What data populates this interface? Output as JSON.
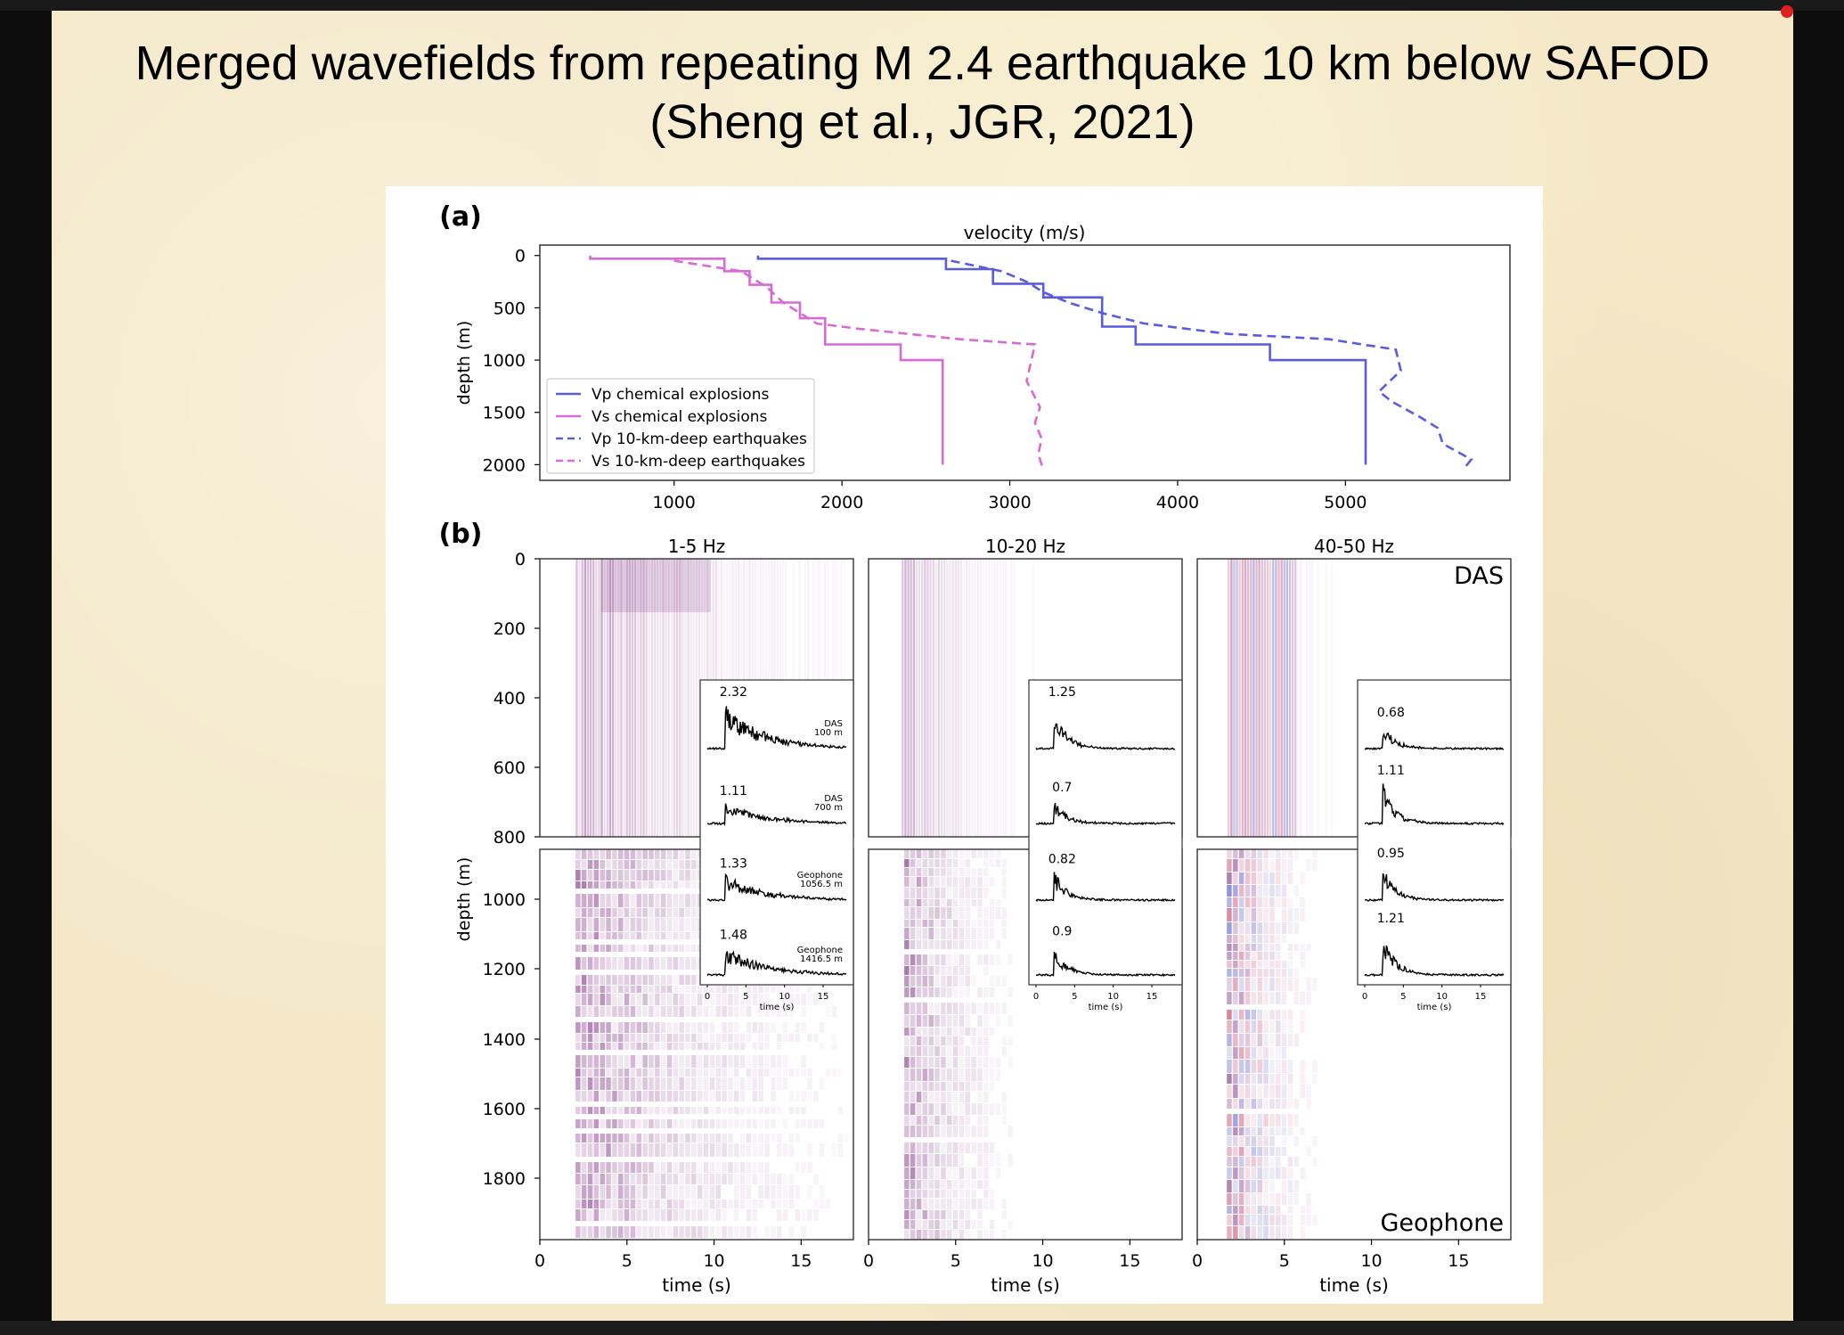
{
  "slide": {
    "title_line1": "Merged wavefields from repeating M 2.4 earthquake 10 km below SAFOD",
    "title_line2": "(Sheng et al., JGR, 2021)"
  },
  "colors": {
    "vp": "#5b5bdf",
    "vs": "#d76ad4",
    "wave_purple": "#7a2a80",
    "wave_blue": "#4040c0",
    "wave_red": "#c03060"
  },
  "chart_data": [
    {
      "panel": "(a)",
      "type": "line",
      "title": "velocity (m/s)",
      "xlabel": "",
      "ylabel": "depth (m)",
      "xlim": [
        200,
        5980
      ],
      "ylim": [
        2150,
        -100
      ],
      "y_inverted": true,
      "xticks": [
        1000,
        2000,
        3000,
        4000,
        5000
      ],
      "yticks": [
        0,
        500,
        1000,
        1500,
        2000
      ],
      "legend_position": "lower-left",
      "series": [
        {
          "name": "Vp chemical explosions",
          "color": "#5b5bdf",
          "style": "solid",
          "x": [
            1500,
            1500,
            2620,
            2620,
            2900,
            2900,
            3200,
            3200,
            3550,
            3550,
            3750,
            3750,
            4550,
            4550,
            5120,
            5120
          ],
          "y": [
            0,
            30,
            30,
            130,
            130,
            270,
            270,
            400,
            400,
            680,
            680,
            850,
            850,
            1000,
            1000,
            2000
          ]
        },
        {
          "name": "Vs chemical explosions",
          "color": "#d76ad4",
          "style": "solid",
          "x": [
            500,
            500,
            1300,
            1300,
            1450,
            1450,
            1580,
            1580,
            1750,
            1750,
            1900,
            1900,
            2350,
            2350,
            2600,
            2600
          ],
          "y": [
            0,
            30,
            30,
            150,
            150,
            280,
            280,
            450,
            450,
            600,
            600,
            850,
            850,
            1000,
            1000,
            2000
          ]
        },
        {
          "name": "Vp 10-km-deep earthquakes",
          "color": "#5b5bdf",
          "style": "dashed",
          "x": [
            2650,
            2800,
            2950,
            3100,
            3200,
            3350,
            3550,
            3800,
            4300,
            4900,
            5300,
            5330,
            5200,
            5280,
            5450,
            5550,
            5580,
            5750,
            5700
          ],
          "y": [
            50,
            100,
            150,
            250,
            350,
            450,
            550,
            650,
            750,
            800,
            900,
            1100,
            1300,
            1400,
            1550,
            1650,
            1800,
            1950,
            2050
          ]
        },
        {
          "name": "Vs 10-km-deep earthquakes",
          "color": "#d76ad4",
          "style": "dashed",
          "x": [
            1000,
            1400,
            1550,
            1650,
            1750,
            1850,
            2100,
            2700,
            3150,
            3100,
            3180,
            3150,
            3190,
            3170,
            3200
          ],
          "y": [
            50,
            150,
            300,
            450,
            550,
            650,
            700,
            800,
            850,
            1200,
            1450,
            1600,
            1750,
            1900,
            2050
          ]
        }
      ]
    },
    {
      "panel": "(b)",
      "type": "heatmap",
      "ylabel": "depth (m)",
      "xlabel": "time (s)",
      "xlim": [
        0,
        18
      ],
      "xticks": [
        0,
        5,
        10,
        15
      ],
      "ylim": [
        1980,
        0
      ],
      "yticks": [
        0,
        200,
        400,
        600,
        800,
        1000,
        1200,
        1400,
        1600,
        1800
      ],
      "das_depth_range": [
        0,
        800
      ],
      "geophone_depth_range": [
        830,
        1980
      ],
      "labels": {
        "das": "DAS",
        "geophone": "Geophone"
      },
      "panels": [
        {
          "band": "1-5 Hz",
          "onset_s": 2.0,
          "spread_s": 12.0,
          "insets": [
            {
              "peak": "2.32",
              "label_line1": "DAS",
              "label_line2": "100 m",
              "amp": 1.0
            },
            {
              "peak": "1.11",
              "label_line1": "DAS",
              "label_line2": "700 m",
              "amp": 0.48
            },
            {
              "peak": "1.33",
              "label_line1": "Geophone",
              "label_line2": "1056.5 m",
              "amp": 0.57
            },
            {
              "peak": "1.48",
              "label_line1": "Geophone",
              "label_line2": "1416.5 m",
              "amp": 0.64
            }
          ]
        },
        {
          "band": "10-20 Hz",
          "onset_s": 1.8,
          "spread_s": 5.0,
          "insets": [
            {
              "peak": "1.25",
              "amp": 1.0
            },
            {
              "peak": "0.7",
              "amp": 0.56
            },
            {
              "peak": "0.82",
              "amp": 0.66
            },
            {
              "peak": "0.9",
              "amp": 0.72
            }
          ]
        },
        {
          "band": "40-50 Hz",
          "onset_s": 1.6,
          "spread_s": 4.0,
          "insets": [
            {
              "peak": "0.68",
              "amp": 0.56
            },
            {
              "peak": "1.11",
              "amp": 0.92
            },
            {
              "peak": "0.95",
              "amp": 0.79
            },
            {
              "peak": "1.21",
              "amp": 1.0
            }
          ]
        }
      ],
      "inset_xticks": [
        0,
        5,
        10,
        15
      ],
      "inset_xlabel": "time (s)"
    }
  ]
}
